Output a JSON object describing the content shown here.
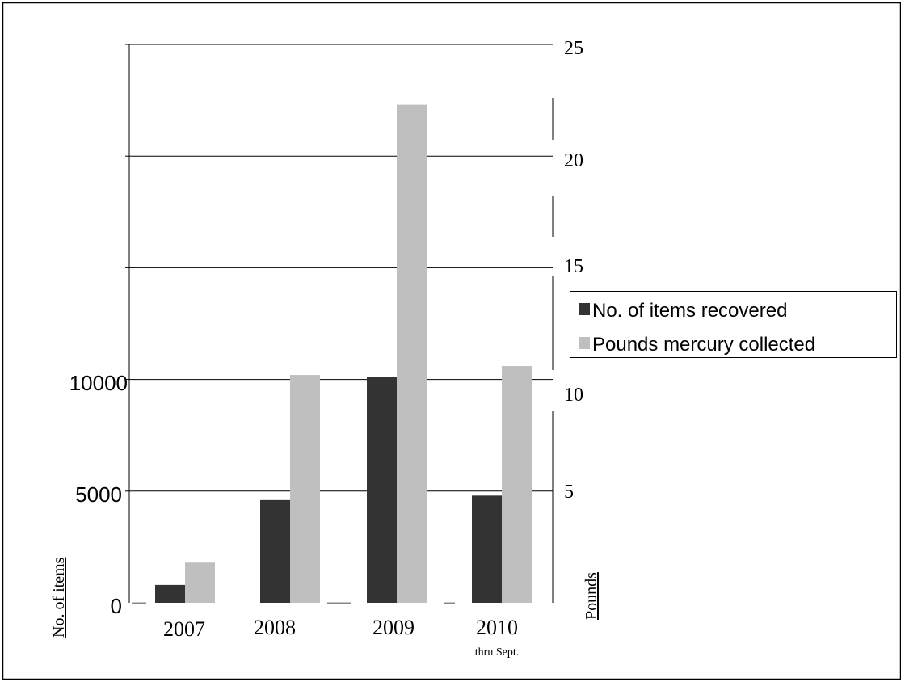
{
  "chart_data": {
    "type": "bar",
    "categories": [
      "2007",
      "2008",
      "2009",
      "2010"
    ],
    "category_sublabels": [
      "",
      "",
      "",
      "thru Sept."
    ],
    "series": [
      {
        "name": "No. of items recovered",
        "axis": "left",
        "color": "#333333",
        "values": [
          800,
          4600,
          10100,
          4800
        ]
      },
      {
        "name": "Pounds mercury collected",
        "axis": "right",
        "color": "#bfbfbf",
        "values": [
          1.8,
          10.2,
          22.3,
          10.6
        ]
      }
    ],
    "left_axis": {
      "label": "No. of items",
      "ticks": [
        "0",
        "5000",
        "10000"
      ],
      "ylim": [
        0,
        25000
      ]
    },
    "right_axis": {
      "label": "Pounds",
      "ticks": [
        "5",
        "10",
        "15",
        "20",
        "25"
      ],
      "ylim": [
        0,
        25
      ]
    },
    "gridlines": true,
    "legend_position": "right"
  }
}
